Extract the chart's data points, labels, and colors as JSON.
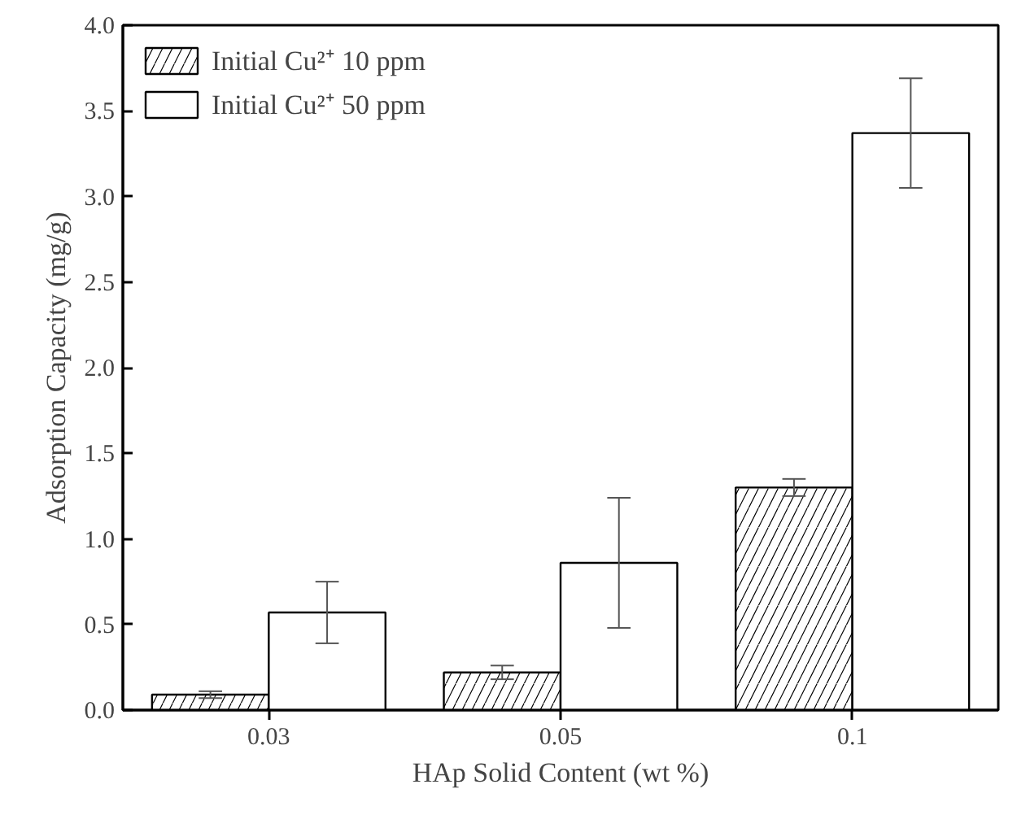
{
  "chart_data": {
    "type": "bar",
    "xlabel": "HAp Solid Content (wt %)",
    "ylabel": "Adsorption Capacity (mg/g)",
    "categories": [
      "0.03",
      "0.05",
      "0.1"
    ],
    "series": [
      {
        "name": "Initial Cu²⁺ 10 ppm",
        "color": "#ffffff",
        "values": [
          0.09,
          0.22,
          1.3
        ],
        "errors": [
          0.02,
          0.04,
          0.05
        ]
      },
      {
        "name": "Initial Cu²⁺ 50 ppm",
        "color": "#ffffff",
        "values": [
          0.57,
          0.86,
          3.37
        ],
        "errors": [
          0.18,
          0.38,
          0.32
        ]
      }
    ],
    "ylim": [
      0,
      4
    ],
    "yticks": [
      {
        "value": 0,
        "label": "0.0"
      },
      {
        "value": 0.5,
        "label": "0.5"
      },
      {
        "value": 1,
        "label": "1.0"
      },
      {
        "value": 1.5,
        "label": "1.5"
      },
      {
        "value": 2,
        "label": "2.0"
      },
      {
        "value": 2.5,
        "label": "2.5"
      },
      {
        "value": 3,
        "label": "3.0"
      },
      {
        "value": 3.5,
        "label": "3.5"
      },
      {
        "value": 4,
        "label": "4.0"
      }
    ],
    "grid": false,
    "legend": "top left"
  }
}
